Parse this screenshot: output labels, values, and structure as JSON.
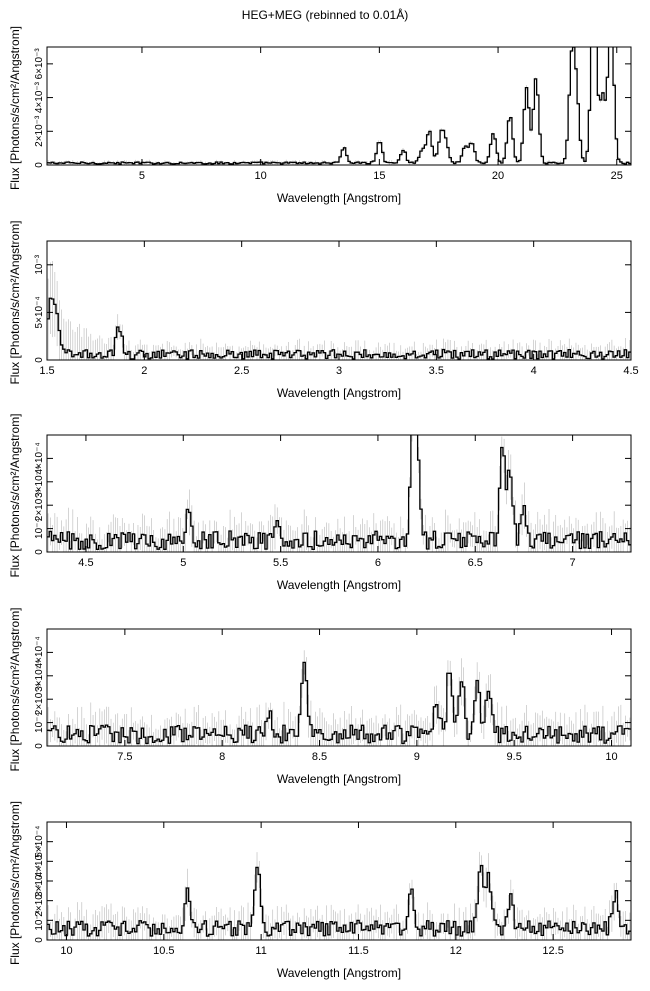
{
  "title": "HEG+MEG (rebinned to 0.01Å)",
  "chart_data": [
    {
      "type": "line",
      "xlabel": "Wavelength [Angstrom]",
      "ylabel": "Flux [Photons/s/cm²/Angstrom]",
      "xlim": [
        1.0,
        25.6
      ],
      "ylim": [
        0,
        0.007
      ],
      "xticks": [
        5,
        10,
        15,
        20,
        25
      ],
      "xtick_labels": [
        "5",
        "10",
        "15",
        "20",
        "25"
      ],
      "yticks": [
        0,
        0.002,
        0.004,
        0.006
      ],
      "ytick_labels": [
        "0",
        "2×10⁻³",
        "4×10⁻³",
        "6×10⁻³"
      ],
      "baseline": 0.00012,
      "noise": 6e-05,
      "lines": [
        [
          24.0,
          0.0069
        ],
        [
          24.1,
          0.0035
        ],
        [
          23.1,
          0.0059
        ],
        [
          23.3,
          0.004
        ],
        [
          24.4,
          0.0039
        ],
        [
          24.7,
          0.0045
        ],
        [
          24.8,
          0.0048
        ],
        [
          21.6,
          0.005
        ],
        [
          21.2,
          0.0045
        ],
        [
          20.5,
          0.0028
        ],
        [
          19.8,
          0.0018
        ],
        [
          18.9,
          0.0012
        ],
        [
          18.6,
          0.001
        ],
        [
          17.8,
          0.0011
        ],
        [
          17.6,
          0.0017
        ],
        [
          17.1,
          0.0019
        ],
        [
          16.8,
          0.0008
        ],
        [
          16.0,
          0.0008
        ],
        [
          15.0,
          0.0013
        ],
        [
          13.5,
          0.0009
        ]
      ]
    },
    {
      "type": "line",
      "xlabel": "Wavelength [Angstrom]",
      "ylabel": "Flux [Photons/s/cm²/Angstrom]",
      "xlim": [
        1.5,
        4.5
      ],
      "ylim": [
        0,
        0.00125
      ],
      "xticks": [
        1.5,
        2,
        2.5,
        3,
        3.5,
        4,
        4.5
      ],
      "xtick_labels": [
        "1.5",
        "2",
        "2.5",
        "3",
        "3.5",
        "4",
        "4.5"
      ],
      "yticks": [
        0,
        0.0005,
        0.001
      ],
      "ytick_labels": [
        "0",
        "5×10⁻⁴",
        "10⁻³"
      ],
      "baseline": 6e-05,
      "noise": 5e-05,
      "lines": [
        [
          1.52,
          0.0006
        ],
        [
          1.55,
          0.0004
        ],
        [
          1.87,
          0.0003
        ]
      ]
    },
    {
      "type": "line",
      "xlabel": "Wavelength [Angstrom]",
      "ylabel": "Flux [Photons/s/cm²/Angstrom]",
      "xlim": [
        4.3,
        7.3
      ],
      "ylim": [
        0,
        0.0005
      ],
      "xticks": [
        4.5,
        5,
        5.5,
        6,
        6.5,
        7
      ],
      "xtick_labels": [
        "4.5",
        "5",
        "5.5",
        "6",
        "6.5",
        "7"
      ],
      "yticks": [
        0,
        0.0001,
        0.0002,
        0.0003,
        0.0004
      ],
      "ytick_labels": [
        "0",
        "10⁻⁴",
        "2×10⁻⁴",
        "3×10⁻⁴",
        "4×10⁻⁴"
      ],
      "baseline": 5e-05,
      "noise": 4e-05,
      "lines": [
        [
          6.18,
          0.00045
        ],
        [
          6.2,
          0.0004
        ],
        [
          6.64,
          0.0004
        ],
        [
          6.68,
          0.00028
        ],
        [
          5.03,
          0.00015
        ],
        [
          6.75,
          0.00012
        ],
        [
          5.48,
          0.00011
        ]
      ]
    },
    {
      "type": "line",
      "xlabel": "Wavelength [Angstrom]",
      "ylabel": "Flux [Photons/s/cm²/Angstrom]",
      "xlim": [
        7.1,
        10.1
      ],
      "ylim": [
        0,
        0.0005
      ],
      "xticks": [
        7.5,
        8,
        8.5,
        9,
        9.5,
        10
      ],
      "xtick_labels": [
        "7.5",
        "8",
        "8.5",
        "9",
        "9.5",
        "10"
      ],
      "yticks": [
        0,
        0.0001,
        0.0002,
        0.0003,
        0.0004
      ],
      "ytick_labels": [
        "0",
        "10⁻⁴",
        "2×10⁻⁴",
        "3×10⁻⁴",
        "4×10⁻⁴"
      ],
      "baseline": 5e-05,
      "noise": 4e-05,
      "lines": [
        [
          8.42,
          0.00032
        ],
        [
          9.17,
          0.0003
        ],
        [
          9.23,
          0.00022
        ],
        [
          9.31,
          0.00023
        ],
        [
          9.37,
          0.00018
        ],
        [
          9.1,
          0.00015
        ],
        [
          8.24,
          8e-05
        ]
      ]
    },
    {
      "type": "line",
      "xlabel": "Wavelength [Angstrom]",
      "ylabel": "Flux [Photons/s/cm²/Angstrom]",
      "xlim": [
        9.9,
        12.9
      ],
      "ylim": [
        0,
        0.0006
      ],
      "xticks": [
        10,
        10.5,
        11,
        11.5,
        12,
        12.5
      ],
      "xtick_labels": [
        "10",
        "10.5",
        "11",
        "11.5",
        "12",
        "12.5"
      ],
      "yticks": [
        0,
        0.0001,
        0.0002,
        0.0003,
        0.0004,
        0.0005
      ],
      "ytick_labels": [
        "0",
        "10⁻⁴",
        "2×10⁻⁴",
        "3×10⁻⁴",
        "4×10⁻⁴",
        "5×10⁻⁴"
      ],
      "baseline": 6e-05,
      "noise": 4e-05,
      "lines": [
        [
          10.98,
          0.00032
        ],
        [
          12.13,
          0.00034
        ],
        [
          12.17,
          0.00025
        ],
        [
          11.77,
          0.0002
        ],
        [
          10.62,
          0.00018
        ],
        [
          12.28,
          0.00014
        ],
        [
          12.82,
          0.00018
        ]
      ]
    }
  ]
}
